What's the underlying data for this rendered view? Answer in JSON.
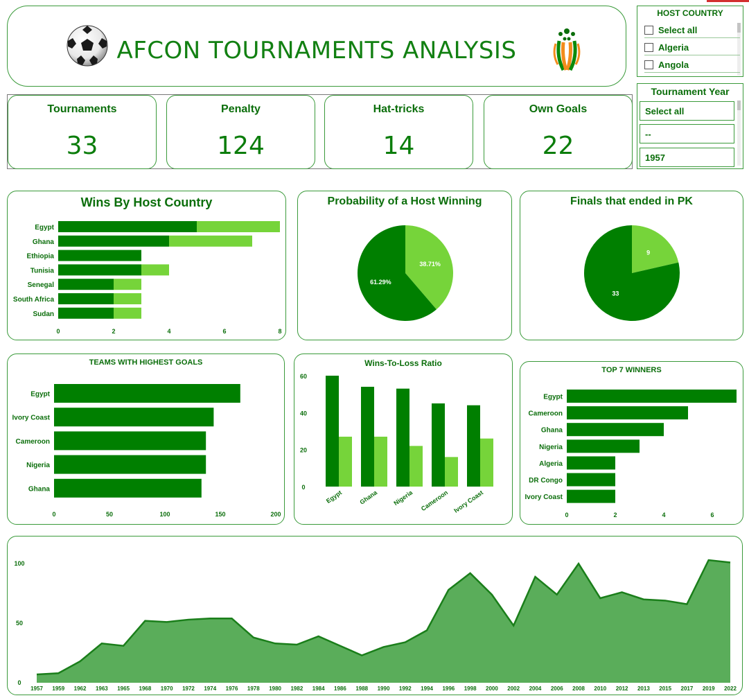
{
  "header": {
    "title": "AFCON TOURNAMENTS ANALYSIS",
    "ball_icon": "soccer-ball-icon",
    "logo_icon": "afcon-logo-icon"
  },
  "host_country_slicer": {
    "title": "HOST COUNTRY",
    "items": [
      "Select all",
      "Algeria",
      "Angola"
    ]
  },
  "year_slicer": {
    "title": "Tournament Year",
    "items": [
      "Select all",
      "--",
      "1957"
    ]
  },
  "kpis": [
    {
      "label": "Tournaments",
      "value": "33"
    },
    {
      "label": "Penalty",
      "value": "124"
    },
    {
      "label": "Hat-tricks",
      "value": "14"
    },
    {
      "label": "Own Goals",
      "value": "22"
    }
  ],
  "colors": {
    "dark_green": "#007f00",
    "light_green": "#76d43a",
    "area_fill": "#5aad5a",
    "area_line": "#1a7e1a",
    "text_green": "#0b6e0b"
  },
  "charts": {
    "wins_by_host": {
      "title": "Wins By Host Country",
      "chart_data": {
        "type": "bar",
        "orientation": "horizontal",
        "stacked": true,
        "categories": [
          "Egypt",
          "Ghana",
          "Ethiopia",
          "Tunisia",
          "Senegal",
          "South Africa",
          "Sudan"
        ],
        "series": [
          {
            "values": [
              5,
              4,
              3,
              3,
              2,
              2,
              2
            ]
          },
          {
            "values": [
              3,
              3,
              0,
              1,
              1,
              1,
              1
            ]
          }
        ],
        "xlim": [
          0,
          8
        ],
        "xticks": [
          "0",
          "2",
          "4",
          "6",
          "8"
        ]
      }
    },
    "host_win_probability": {
      "title": "Probability of a Host Winning",
      "chart_data": {
        "type": "pie",
        "slices": [
          {
            "label": "38.71%",
            "value": 38.71
          },
          {
            "label": "61.29%",
            "value": 61.29
          }
        ]
      }
    },
    "finals_pk": {
      "title": "Finals that ended in PK",
      "chart_data": {
        "type": "pie",
        "slices": [
          {
            "label": "9",
            "value": 9
          },
          {
            "label": "33",
            "value": 33
          }
        ]
      }
    },
    "highest_goals": {
      "title": "TEAMS WITH HIGHEST GOALS",
      "chart_data": {
        "type": "bar",
        "orientation": "horizontal",
        "categories": [
          "Egypt",
          "Ivory Coast",
          "Cameroon",
          "Nigeria",
          "Ghana"
        ],
        "values": [
          168,
          144,
          137,
          137,
          133
        ],
        "xlim": [
          0,
          200
        ],
        "xticks": [
          "0",
          "50",
          "100",
          "150",
          "200"
        ]
      }
    },
    "wins_loss_ratio": {
      "title": "Wins-To-Loss Ratio",
      "chart_data": {
        "type": "bar",
        "categories": [
          "Egypt",
          "Ghana",
          "Nigeria",
          "Cameroon",
          "Ivory Coast"
        ],
        "series": [
          {
            "values": [
              60,
              54,
              53,
              45,
              44
            ]
          },
          {
            "values": [
              27,
              27,
              22,
              16,
              26
            ]
          }
        ],
        "ylim": [
          0,
          60
        ],
        "yticks": [
          "0",
          "20",
          "40",
          "60"
        ]
      }
    },
    "top_winners": {
      "title": "TOP 7 WINNERS",
      "chart_data": {
        "type": "bar",
        "orientation": "horizontal",
        "categories": [
          "Egypt",
          "Cameroon",
          "Ghana",
          "Nigeria",
          "Algeria",
          "DR Congo",
          "Ivory Coast"
        ],
        "values": [
          7,
          5,
          4,
          3,
          2,
          2,
          2
        ],
        "xlim": [
          0,
          7
        ],
        "xticks": [
          "0",
          "2",
          "4",
          "6"
        ]
      }
    },
    "goals_by_year": {
      "chart_data": {
        "type": "area",
        "x": [
          "1957",
          "1959",
          "1962",
          "1963",
          "1965",
          "1968",
          "1970",
          "1972",
          "1974",
          "1976",
          "1978",
          "1980",
          "1982",
          "1984",
          "1986",
          "1988",
          "1990",
          "1992",
          "1994",
          "1996",
          "1998",
          "2000",
          "2002",
          "2004",
          "2006",
          "2008",
          "2010",
          "2012",
          "2013",
          "2015",
          "2017",
          "2019",
          "2022"
        ],
        "values": [
          7,
          8,
          18,
          33,
          31,
          52,
          51,
          53,
          54,
          54,
          38,
          33,
          32,
          39,
          31,
          23,
          30,
          34,
          44,
          78,
          92,
          74,
          48,
          89,
          74,
          100,
          71,
          76,
          70,
          69,
          66,
          103,
          101
        ],
        "ylim": [
          0,
          110
        ],
        "yticks": [
          "0",
          "50",
          "100"
        ]
      }
    }
  }
}
